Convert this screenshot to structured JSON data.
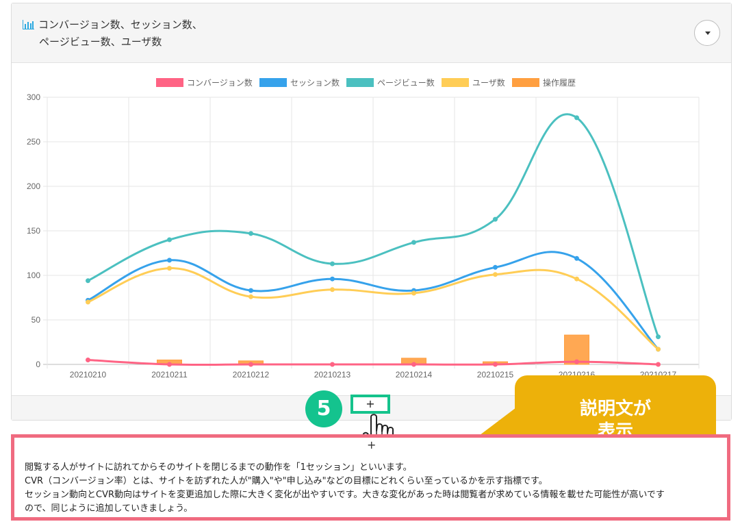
{
  "panel": {
    "title_line1": "コンバージョン数、セッション数、",
    "title_line2": "ページビュー数、ユーザ数",
    "icon": "bar-chart-icon",
    "dropdown_icon": "caret-down-icon"
  },
  "chart_data": {
    "type": "line",
    "categories": [
      "20210210",
      "20210211",
      "20210212",
      "20210213",
      "20210214",
      "20210215",
      "20210216",
      "20210217"
    ],
    "ylim": [
      0,
      300
    ],
    "yticks": [
      0,
      50,
      100,
      150,
      200,
      250,
      300
    ],
    "ytick_labels": [
      "0",
      "50",
      "100",
      "150",
      "200",
      "250",
      "300"
    ],
    "grid": true,
    "legend_position": "top",
    "series": [
      {
        "name": "コンバージョン数",
        "kind": "line",
        "color": "#ff6384",
        "values": [
          5,
          0,
          0,
          0,
          0,
          0,
          3,
          0
        ]
      },
      {
        "name": "セッション数",
        "kind": "line",
        "color": "#36a2eb",
        "values": [
          72,
          117,
          83,
          96,
          83,
          109,
          119,
          17
        ]
      },
      {
        "name": "ページビュー数",
        "kind": "line",
        "color": "#4bc0c0",
        "values": [
          94,
          140,
          147,
          113,
          137,
          163,
          277,
          31
        ]
      },
      {
        "name": "ユーザ数",
        "kind": "line",
        "color": "#ffcd56",
        "values": [
          70,
          108,
          76,
          84,
          80,
          101,
          96,
          17
        ]
      },
      {
        "name": "操作履歴",
        "kind": "bar",
        "color": "#ff9f40",
        "values": [
          0,
          5,
          4,
          0,
          7,
          3,
          33,
          0
        ]
      }
    ]
  },
  "annotation": {
    "step_number": "5",
    "plus_label": "+",
    "callout_text": "説明文が表示",
    "callout_color": "#edb10a",
    "highlight_color": "#15c38c"
  },
  "description": {
    "plus_label": "+",
    "lines": [
      "閲覧する人がサイトに訪れてからそのサイトを閉じるまでの動作を「1セッション」といいます。",
      "CVR（コンバージョン率）とは、サイトを訪ずれた人が\"購入\"や\"申し込み\"などの目標にどれくらい至っているかを示す指標です。",
      "セッション動向とCVR動向はサイトを変更追加した際に大きく変化が出やすいです。大きな変化があった時は閲覧者が求めている情報を載せた可能性が高いです",
      "ので、同じように追加していきましょう。"
    ]
  }
}
